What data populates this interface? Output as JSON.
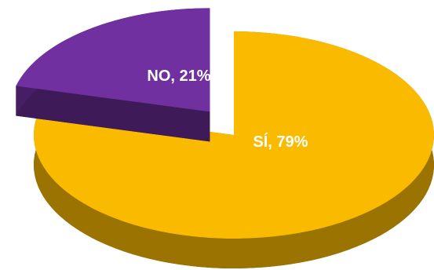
{
  "chart_data": {
    "type": "pie",
    "values": [
      79,
      21
    ],
    "value_labels": [
      "SÍ, 79%",
      "NO, 21%"
    ],
    "colors": [
      "#f9ba00",
      "#7030a0"
    ]
  }
}
